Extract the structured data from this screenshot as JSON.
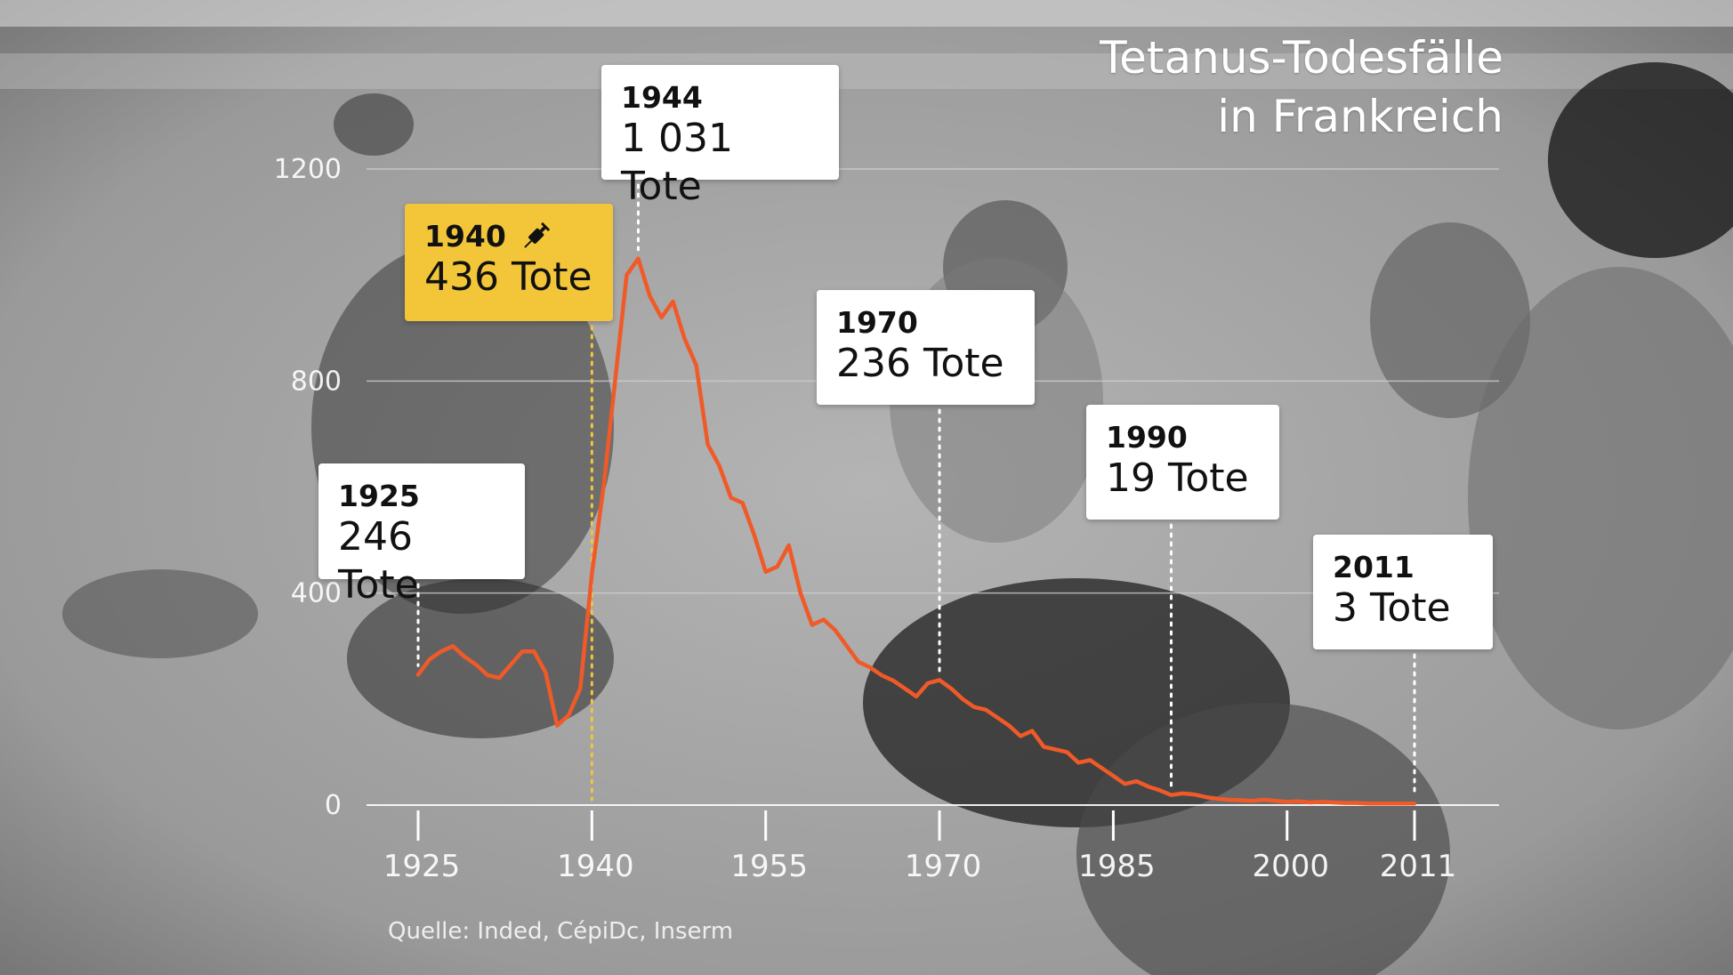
{
  "title_line1": "Tetanus-Todesfälle",
  "title_line2": "in Frankreich",
  "source": "Quelle: Inded, CépiDc, Inserm",
  "colors": {
    "line": "#f05a28",
    "highlight": "#f3c63a",
    "callout_bg": "#ffffff",
    "axis": "#ffffff"
  },
  "callouts": [
    {
      "year": "1925",
      "value": "246 Tote",
      "highlight": false
    },
    {
      "year": "1940",
      "value": "436 Tote",
      "highlight": true,
      "icon": "syringe-icon"
    },
    {
      "year": "1944",
      "value": "1 031 Tote",
      "highlight": false
    },
    {
      "year": "1970",
      "value": "236 Tote",
      "highlight": false
    },
    {
      "year": "1990",
      "value": "19 Tote",
      "highlight": false
    },
    {
      "year": "2011",
      "value": "3 Tote",
      "highlight": false
    }
  ],
  "chart_data": {
    "type": "line",
    "xlim": [
      1925,
      2011
    ],
    "ylim": [
      0,
      1200
    ],
    "x_ticks": [
      "1925",
      "1940",
      "1955",
      "1970",
      "1985",
      "2000",
      "2011"
    ],
    "y_ticks": [
      "0",
      "400",
      "800",
      "1200"
    ],
    "grid": true,
    "series": [
      {
        "x": [
          1925,
          1926,
          1927,
          1928,
          1929,
          1930,
          1931,
          1932,
          1933,
          1934,
          1935,
          1936,
          1937,
          1938,
          1939,
          1940,
          1941,
          1942,
          1943,
          1944,
          1945,
          1946,
          1947,
          1948,
          1949,
          1950,
          1951,
          1952,
          1953,
          1954,
          1955,
          1956,
          1957,
          1958,
          1959,
          1960,
          1961,
          1962,
          1963,
          1964,
          1965,
          1966,
          1967,
          1968,
          1969,
          1970,
          1971,
          1972,
          1973,
          1974,
          1975,
          1976,
          1977,
          1978,
          1979,
          1980,
          1981,
          1982,
          1983,
          1984,
          1985,
          1986,
          1987,
          1988,
          1989,
          1990,
          1991,
          1992,
          1993,
          1994,
          1995,
          1996,
          1997,
          1998,
          1999,
          2000,
          2001,
          2002,
          2003,
          2004,
          2005,
          2006,
          2007,
          2008,
          2009,
          2010,
          2011
        ],
        "y": [
          246,
          275,
          290,
          300,
          280,
          265,
          245,
          240,
          265,
          290,
          290,
          250,
          150,
          170,
          220,
          436,
          600,
          800,
          1000,
          1031,
          960,
          920,
          950,
          880,
          830,
          680,
          640,
          580,
          570,
          510,
          440,
          450,
          490,
          400,
          340,
          350,
          330,
          300,
          270,
          260,
          245,
          235,
          220,
          205,
          230,
          236,
          220,
          200,
          185,
          180,
          165,
          150,
          130,
          140,
          110,
          105,
          100,
          80,
          85,
          70,
          55,
          40,
          45,
          35,
          28,
          19,
          22,
          20,
          15,
          12,
          10,
          9,
          8,
          10,
          8,
          6,
          7,
          5,
          6,
          5,
          4,
          4,
          3,
          3,
          3,
          3,
          3
        ]
      }
    ]
  }
}
